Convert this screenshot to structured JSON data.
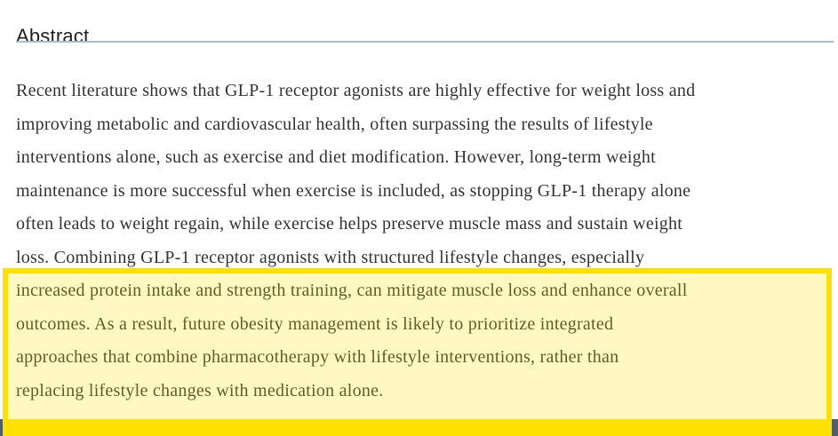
{
  "heading": {
    "label": "Abstract"
  },
  "abstract": {
    "lines": [
      "Recent literature shows that GLP-1 receptor agonists are highly effective for weight loss and",
      "improving metabolic and cardiovascular health, often surpassing the results of lifestyle",
      "interventions alone, such as exercise and diet modification. However, long-term weight",
      "maintenance is more successful when exercise is included, as stopping GLP-1 therapy alone",
      "often leads to weight regain, while exercise helps preserve muscle mass and sustain weight",
      "loss. Combining GLP-1 receptor agonists with structured lifestyle changes, especially",
      "increased protein intake and strength training, can mitigate muscle loss and enhance overall",
      "outcomes. As a result, future obesity management is likely to prioritize integrated",
      "approaches that combine pharmacotherapy with lifestyle interventions, rather than",
      "replacing lifestyle changes with medication alone."
    ]
  },
  "highlight": {
    "highlighted_text": "increased protein intake and strength training, can mitigate muscle loss and enhance overall outcomes. As a result, future obesity management is likely to prioritize integrated approaches that combine pharmacotherapy with lifestyle interventions, rather than replacing lifestyle changes with medication alone.",
    "border_color": "#ffe000",
    "fill_color": "#fcf5c4"
  },
  "colors": {
    "page_background": "#ffffff",
    "heading_text": "#1f1f1f",
    "heading_rule": "#a9bcc8",
    "body_text": "#333333",
    "bottom_bar": "#4f5f69"
  }
}
